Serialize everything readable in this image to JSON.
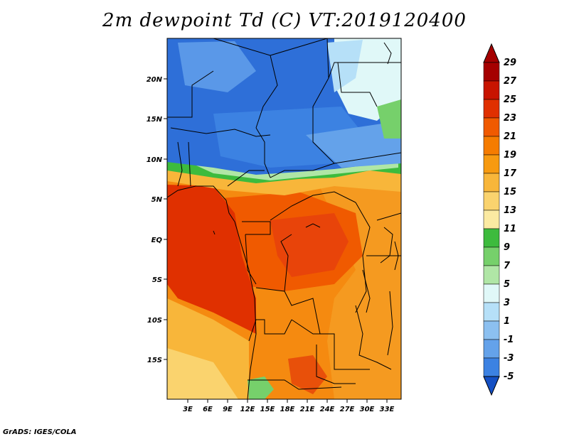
{
  "title": "2m dewpoint Td (C) VT:2019120400",
  "credit": "GrADS: IGES/COLA",
  "map": {
    "lat_labels": [
      "20N",
      "15N",
      "10N",
      "5N",
      "EQ",
      "5S",
      "10S",
      "15S"
    ],
    "lon_labels": [
      "3E",
      "6E",
      "9E",
      "12E",
      "15E",
      "18E",
      "21E",
      "24E",
      "27E",
      "30E",
      "33E"
    ]
  },
  "colorbar": {
    "labels": [
      "29",
      "27",
      "25",
      "23",
      "21",
      "19",
      "17",
      "15",
      "13",
      "11",
      "9",
      "7",
      "5",
      "3",
      "1",
      "-1",
      "-3",
      "-5"
    ],
    "colors": [
      "#a50000",
      "#c81400",
      "#e03000",
      "#f05a00",
      "#f57c00",
      "#f79a10",
      "#f8b63a",
      "#fad36e",
      "#fbeaa2",
      "#3dbb3d",
      "#76d06b",
      "#b0e6a6",
      "#e0f8f8",
      "#b6e0f8",
      "#8cc0f0",
      "#64a2ea",
      "#3c82e2",
      "#2466d6",
      "#1450c4"
    ],
    "triangle_top_color": "#a50000",
    "triangle_bottom_color": "#1450c4"
  },
  "regions": {
    "sahara": "#2e6fd8",
    "sahel_transition": "#6aaaee",
    "green_band": "#3dbb3d",
    "northeast_light": "#e0f8f8",
    "west_coast_deep": "#e03000",
    "congo_basin": "#f05a00",
    "southern_orange": "#f58a10",
    "southwest_light": "#fad36e",
    "east_orange": "#f59a20"
  }
}
